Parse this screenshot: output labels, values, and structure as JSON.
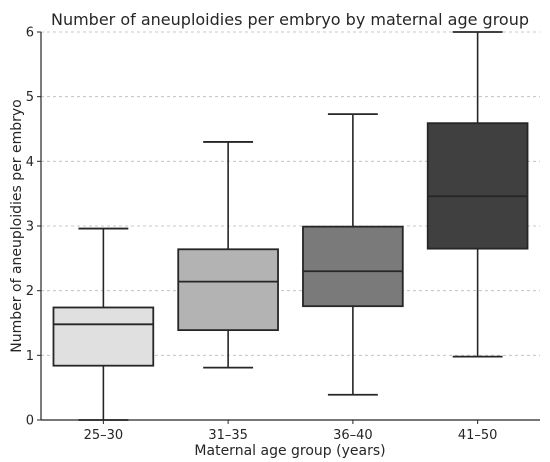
{
  "chart_data": {
    "type": "box",
    "title": "Number of aneuploidies per embryo by maternal age group",
    "xlabel": "Maternal age group (years)",
    "ylabel": "Number of aneuploidies per embryo",
    "ylim": [
      0,
      6
    ],
    "yticks": [
      0,
      1,
      2,
      3,
      4,
      5,
      6
    ],
    "grid": "y-dashed",
    "categories": [
      "25–30",
      "31–35",
      "36–40",
      "41–50"
    ],
    "boxes": [
      {
        "category": "25–30",
        "whisker_low": 0.0,
        "q1": 0.84,
        "median": 1.48,
        "q3": 1.74,
        "whisker_high": 2.96,
        "color": "#e0e0e0"
      },
      {
        "category": "31–35",
        "whisker_low": 0.81,
        "q1": 1.39,
        "median": 2.14,
        "q3": 2.64,
        "whisker_high": 4.3,
        "color": "#b3b3b3"
      },
      {
        "category": "36–40",
        "whisker_low": 0.39,
        "q1": 1.76,
        "median": 2.3,
        "q3": 2.99,
        "whisker_high": 4.73,
        "color": "#7a7a7a"
      },
      {
        "category": "41–50",
        "whisker_low": 0.98,
        "q1": 2.65,
        "median": 3.46,
        "q3": 4.59,
        "whisker_high": 6.0,
        "color": "#404040"
      }
    ]
  }
}
